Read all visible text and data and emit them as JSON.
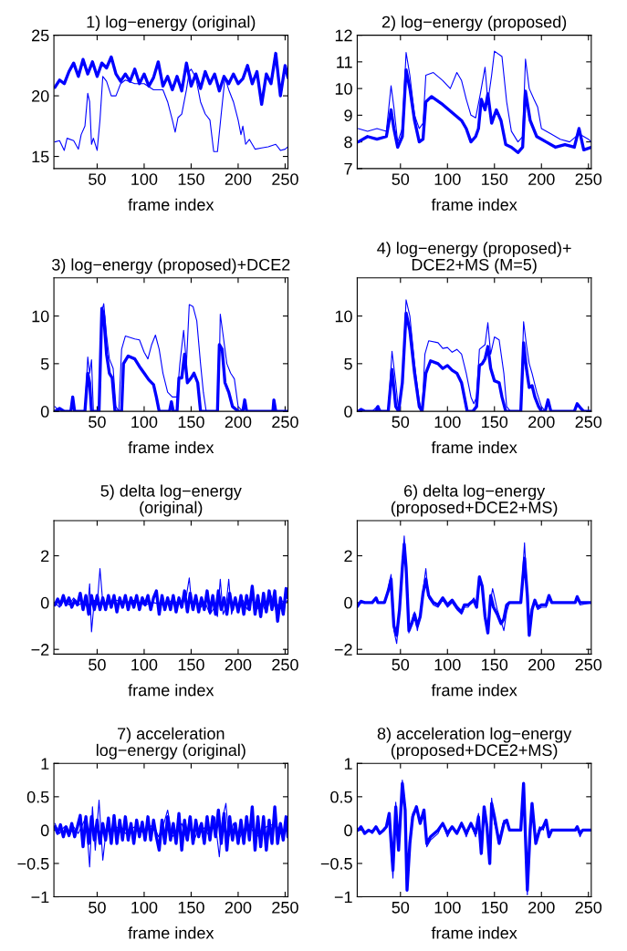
{
  "chart_data": [
    {
      "type": "line",
      "title": "1) log−energy (original)",
      "xlabel": "frame index",
      "xlim": [
        4,
        253
      ],
      "xticks": [
        50,
        100,
        150,
        200,
        250
      ],
      "ylim": [
        14,
        25
      ],
      "yticks": [
        15,
        20,
        25
      ],
      "grid": false,
      "line_style": "solid",
      "series": [
        {
          "color": "#0000ff",
          "x": [
            5,
            10,
            15,
            20,
            25,
            30,
            35,
            40,
            45,
            50,
            55,
            60,
            65,
            70,
            75,
            80,
            85,
            90,
            95,
            100,
            105,
            110,
            115,
            120,
            125,
            130,
            135,
            140,
            145,
            150,
            155,
            160,
            165,
            170,
            175,
            180,
            185,
            190,
            195,
            200,
            205,
            210,
            215,
            220,
            225,
            230,
            235,
            240,
            245,
            250,
            253
          ],
          "values": [
            20.7,
            21.3,
            21.0,
            22.0,
            22.7,
            21.6,
            23.0,
            21.8,
            22.8,
            21.6,
            22.7,
            22.3,
            23.2,
            21.8,
            21.2,
            21.8,
            21.2,
            22.2,
            21.0,
            21.8,
            20.8,
            21.5,
            22.8,
            20.8,
            21.6,
            20.5,
            21.6,
            20.4,
            22.7,
            20.8,
            21.8,
            20.6,
            22.0,
            21.0,
            21.8,
            20.4,
            21.6,
            21.0,
            21.8,
            21.0,
            21.4,
            22.5,
            21.0,
            22.0,
            19.3,
            21.8,
            21.0,
            23.5,
            20.0,
            22.5,
            21.5
          ]
        },
        {
          "color": "#0000ff",
          "x": [
            5,
            10,
            15,
            18,
            25,
            30,
            33,
            37,
            40,
            42,
            44,
            46,
            50,
            53,
            56,
            60,
            65,
            70,
            75,
            80,
            90,
            100,
            110,
            120,
            125,
            130,
            133,
            136,
            140,
            145,
            148,
            150,
            155,
            160,
            165,
            170,
            174,
            178,
            182,
            186,
            190,
            195,
            200,
            203,
            205,
            208,
            212,
            218,
            225,
            232,
            240,
            245,
            250,
            253
          ],
          "values": [
            16.2,
            16.3,
            15.5,
            16.5,
            16.3,
            15.6,
            16.8,
            17.5,
            20.2,
            19.5,
            16.0,
            16.5,
            15.5,
            18.0,
            21.6,
            21.2,
            20.0,
            20.0,
            21.0,
            21.3,
            21.0,
            21.0,
            20.5,
            20.5,
            19.5,
            18.0,
            17.0,
            18.2,
            18.5,
            20.5,
            22.0,
            22.2,
            21.5,
            19.5,
            18.5,
            18.0,
            15.4,
            15.4,
            18.5,
            21.5,
            20.5,
            19.5,
            18.0,
            16.8,
            17.5,
            16.0,
            16.4,
            15.6,
            15.7,
            15.8,
            16.0,
            15.5,
            15.6,
            15.8
          ]
        }
      ]
    },
    {
      "type": "line",
      "title": "2) log−energy (proposed)",
      "xlabel": "frame index",
      "xlim": [
        4,
        253
      ],
      "xticks": [
        50,
        100,
        150,
        200,
        250
      ],
      "ylim": [
        7,
        12
      ],
      "yticks": [
        7,
        8,
        9,
        10,
        11,
        12
      ],
      "grid": false,
      "line_style": "solid",
      "series": [
        {
          "color": "#0000ff",
          "x": [
            5,
            15,
            25,
            35,
            40,
            43,
            47,
            52,
            56,
            60,
            65,
            70,
            74,
            77,
            83,
            95,
            105,
            115,
            120,
            125,
            130,
            133,
            136,
            140,
            143,
            147,
            152,
            157,
            162,
            168,
            175,
            180,
            183,
            188,
            195,
            205,
            215,
            225,
            235,
            240,
            245,
            253
          ],
          "values": [
            8.0,
            8.2,
            8.1,
            8.2,
            9.2,
            8.5,
            7.8,
            8.2,
            10.7,
            10.0,
            8.8,
            8.0,
            8.1,
            9.5,
            9.7,
            9.4,
            9.1,
            8.8,
            8.5,
            8.0,
            8.2,
            8.5,
            9.6,
            9.2,
            9.8,
            8.7,
            9.2,
            8.8,
            7.9,
            7.8,
            7.6,
            7.8,
            9.9,
            8.8,
            8.2,
            8.0,
            7.8,
            7.9,
            7.8,
            8.5,
            7.7,
            7.8
          ]
        },
        {
          "color": "#0000ff",
          "x": [
            5,
            15,
            25,
            35,
            40,
            43,
            47,
            52,
            56,
            60,
            65,
            70,
            74,
            77,
            85,
            95,
            103,
            110,
            115,
            120,
            125,
            130,
            135,
            140,
            143,
            147,
            150,
            158,
            163,
            168,
            175,
            180,
            183,
            187,
            192,
            196,
            200,
            210,
            220,
            230,
            240,
            250,
            253
          ],
          "values": [
            8.5,
            8.4,
            8.5,
            8.4,
            10.1,
            9.3,
            8.0,
            8.5,
            11.35,
            10.5,
            9.0,
            8.5,
            8.7,
            10.5,
            10.6,
            10.3,
            10.0,
            10.6,
            10.3,
            9.6,
            9.0,
            8.9,
            9.8,
            10.8,
            9.5,
            10.5,
            11.4,
            11.2,
            9.5,
            8.4,
            8.0,
            8.2,
            11.1,
            10.0,
            9.6,
            9.3,
            8.5,
            8.3,
            8.1,
            8.0,
            8.3,
            8.1,
            8.0
          ]
        }
      ]
    },
    {
      "type": "line",
      "title": "3) log−energy (proposed)+DCE2",
      "xlabel": "frame index",
      "xlim": [
        4,
        253
      ],
      "xticks": [
        50,
        100,
        150,
        200,
        250
      ],
      "ylim": [
        0,
        14
      ],
      "yticks": [
        0,
        5,
        10
      ],
      "grid": false,
      "line_style": "solid",
      "series": [
        {
          "color": "#0000ff",
          "x": [
            5,
            10,
            15,
            22,
            24,
            26,
            37,
            40,
            42,
            44,
            52,
            55,
            57,
            60,
            63,
            66,
            69,
            76,
            78,
            83,
            90,
            95,
            100,
            105,
            110,
            113,
            116,
            127,
            129,
            131,
            135,
            137,
            140,
            143,
            146,
            150,
            153,
            157,
            160,
            178,
            180,
            183,
            186,
            190,
            194,
            200,
            205,
            207,
            209,
            237,
            238,
            240,
            253
          ],
          "values": [
            0,
            0.3,
            0,
            0,
            1.5,
            0,
            0,
            4,
            3,
            0,
            0,
            10.8,
            10,
            6,
            4,
            3.5,
            0,
            0,
            5,
            5.8,
            5.5,
            4.7,
            4,
            3.3,
            2.8,
            1.5,
            0,
            0,
            1,
            0,
            0,
            3.5,
            3.5,
            6,
            3,
            3.5,
            4,
            3,
            0,
            0,
            7,
            6.5,
            3,
            2,
            0.5,
            0,
            0,
            1.2,
            0,
            0,
            1.2,
            0,
            0
          ]
        },
        {
          "color": "#0000ff",
          "x": [
            5,
            10,
            22,
            24,
            26,
            37,
            40,
            42,
            44,
            46,
            52,
            55,
            57,
            60,
            63,
            67,
            70,
            73,
            76,
            80,
            90,
            95,
            100,
            104,
            108,
            112,
            116,
            120,
            125,
            130,
            135,
            138,
            142,
            145,
            148,
            152,
            156,
            160,
            163,
            166,
            178,
            180,
            181,
            184,
            188,
            192,
            196,
            200,
            205,
            207,
            209,
            237,
            238,
            240,
            253
          ],
          "values": [
            0.5,
            0,
            0,
            1.5,
            0,
            0,
            5.7,
            4,
            5.4,
            0,
            0,
            10.5,
            11.3,
            8,
            5.5,
            4.5,
            0.5,
            0,
            6.5,
            7.9,
            7.6,
            7.5,
            6.2,
            5.5,
            7,
            8,
            6.5,
            4,
            2,
            1.5,
            1.5,
            5,
            8.5,
            5,
            11.2,
            11,
            9.5,
            5,
            2,
            0,
            0,
            5,
            10.2,
            8,
            5,
            4,
            3.4,
            0.5,
            0,
            1.2,
            0,
            0,
            1.2,
            0,
            0
          ]
        }
      ]
    },
    {
      "type": "line",
      "title": "4) log−energy (proposed)+\nDCE2+MS (M=5)",
      "xlabel": "frame index",
      "xlim": [
        4,
        253
      ],
      "xticks": [
        50,
        100,
        150,
        200,
        250
      ],
      "ylim": [
        0,
        14
      ],
      "yticks": [
        0,
        5,
        10
      ],
      "grid": false,
      "line_style": "solid",
      "series": [
        {
          "color": "#0000ff",
          "x": [
            5,
            8,
            12,
            24,
            26,
            28,
            37,
            41,
            45,
            48,
            52,
            56,
            60,
            65,
            70,
            73,
            77,
            82,
            90,
            95,
            100,
            105,
            110,
            115,
            118,
            121,
            127,
            131,
            134,
            137,
            140,
            143,
            146,
            150,
            155,
            158,
            162,
            178,
            181,
            184,
            187,
            190,
            193,
            197,
            200,
            204,
            207,
            210,
            235,
            238,
            242,
            245,
            253
          ],
          "values": [
            0,
            0.2,
            0,
            0,
            0.5,
            0,
            0,
            4.4,
            0.5,
            0,
            3,
            10.3,
            8.5,
            4,
            0.5,
            0,
            4,
            5.3,
            5,
            4.5,
            4.8,
            4.3,
            4,
            3,
            1.5,
            0,
            0,
            0.5,
            4.8,
            5,
            5.5,
            6.8,
            4.5,
            3.2,
            3,
            1.5,
            0,
            0,
            7.2,
            4.5,
            2.5,
            2.7,
            1.5,
            0.5,
            0,
            0,
            1.2,
            0,
            0,
            0.8,
            0.3,
            0,
            0
          ]
        },
        {
          "color": "#0000ff",
          "x": [
            5,
            20,
            25,
            30,
            37,
            41,
            45,
            48,
            52,
            56,
            60,
            65,
            70,
            73,
            76,
            80,
            90,
            95,
            100,
            105,
            110,
            115,
            120,
            125,
            128,
            131,
            134,
            140,
            143,
            146,
            150,
            155,
            160,
            163,
            167,
            178,
            181,
            184,
            187,
            190,
            195,
            200,
            204,
            207,
            210,
            235,
            238,
            242,
            245,
            253
          ],
          "values": [
            0,
            0,
            0.5,
            0,
            0,
            6.3,
            3,
            0,
            3,
            11.7,
            10,
            5,
            1,
            0,
            6,
            7.4,
            7.2,
            6.6,
            6.7,
            6.2,
            6.5,
            6,
            4,
            1.5,
            0.8,
            1.5,
            6.5,
            7,
            9.3,
            6,
            7.8,
            7.5,
            4,
            0.5,
            0,
            0,
            9.4,
            7,
            5,
            4,
            2,
            0.5,
            0,
            1.2,
            0,
            0,
            0.8,
            0.3,
            0,
            0
          ]
        }
      ]
    },
    {
      "type": "line",
      "title": "5) delta log−energy\n(original)",
      "xlabel": "frame index",
      "xlim": [
        4,
        253
      ],
      "xticks": [
        50,
        100,
        150,
        200,
        250
      ],
      "ylim": [
        -2.2,
        3.5
      ],
      "yticks": [
        {
          "value": -2,
          "label": "−2"
        },
        0,
        2
      ],
      "grid": false,
      "line_style": "solid",
      "series": [
        {
          "color": "#0000ff",
          "x": [
            5,
            8,
            11,
            14,
            17,
            20,
            23,
            26,
            29,
            32,
            35,
            38,
            41,
            44,
            47,
            50,
            53,
            56,
            59,
            62,
            65,
            68,
            71,
            74,
            77,
            80,
            83,
            86,
            89,
            92,
            95,
            98,
            101,
            104,
            107,
            110,
            113,
            116,
            119,
            122,
            125,
            128,
            131,
            134,
            137,
            140,
            143,
            146,
            149,
            152,
            155,
            158,
            161,
            164,
            167,
            170,
            173,
            176,
            179,
            182,
            185,
            188,
            191,
            194,
            197,
            200,
            203,
            206,
            209,
            212,
            215,
            218,
            221,
            224,
            227,
            230,
            233,
            236,
            239,
            242,
            245,
            248,
            251,
            253
          ],
          "values": [
            -0.1,
            0.15,
            -0.1,
            0.3,
            -0.1,
            0.2,
            -0.2,
            0.1,
            -0.1,
            0.4,
            -0.3,
            0.3,
            -0.5,
            0.3,
            -0.3,
            0.3,
            -0.3,
            0.2,
            -0.3,
            0.3,
            -0.2,
            0.3,
            -0.4,
            0.2,
            -0.2,
            0.3,
            -0.3,
            0.2,
            -0.2,
            0.3,
            -0.3,
            0.2,
            -0.1,
            0.3,
            -0.3,
            0.2,
            0.5,
            -0.5,
            0.3,
            -0.3,
            0.2,
            -0.3,
            0.3,
            -0.4,
            0.2,
            -0.2,
            0.5,
            -0.4,
            0.4,
            -0.3,
            0.3,
            -0.4,
            0.2,
            -0.3,
            0.5,
            -0.4,
            0.3,
            -0.5,
            0.5,
            -0.3,
            0.2,
            -0.5,
            0.4,
            -0.3,
            0.2,
            -0.4,
            0.3,
            -0.5,
            0.3,
            -0.3,
            0.7,
            -0.5,
            0.3,
            -0.6,
            0.4,
            -0.4,
            0.5,
            -0.3,
            0.5,
            -0.8,
            0.2,
            -0.5,
            0.6,
            0.2
          ]
        },
        {
          "color": "#0000ff",
          "x": [
            5,
            10,
            15,
            20,
            25,
            30,
            35,
            40,
            42,
            44,
            47,
            50,
            53,
            56,
            60,
            70,
            80,
            90,
            100,
            110,
            120,
            130,
            140,
            145,
            148,
            151,
            155,
            160,
            165,
            170,
            175,
            178,
            181,
            184,
            187,
            190,
            193,
            197,
            200,
            205,
            210,
            215,
            220,
            225,
            230,
            235,
            240,
            245,
            250,
            253
          ],
          "values": [
            0,
            -0.2,
            0.1,
            -0.1,
            0.2,
            -0.1,
            0,
            -0.2,
            0.8,
            -1.25,
            0.1,
            -0.1,
            1.45,
            0,
            -0.1,
            0.1,
            0,
            0.1,
            -0.1,
            0,
            -0.1,
            0.1,
            -0.1,
            0.3,
            1.05,
            -0.3,
            0.1,
            -0.2,
            0,
            -0.5,
            -0.2,
            -0.6,
            1.0,
            -0.5,
            -0.2,
            1.0,
            -0.5,
            0.1,
            -0.4,
            0.1,
            -0.3,
            0.2,
            -0.3,
            0,
            -0.4,
            0.3,
            -0.3,
            0.1,
            0,
            0.1
          ]
        }
      ]
    },
    {
      "type": "line",
      "title": "6) delta log−energy\n(proposed+DCE2+MS)",
      "xlabel": "frame index",
      "xlim": [
        4,
        253
      ],
      "xticks": [
        50,
        100,
        150,
        200,
        250
      ],
      "ylim": [
        -2.2,
        3.5
      ],
      "yticks": [
        {
          "value": -2,
          "label": "−2"
        },
        0,
        2
      ],
      "grid": false,
      "line_style": "solid",
      "series": [
        {
          "color": "#0000ff",
          "x": [
            5,
            8,
            12,
            20,
            24,
            26,
            33,
            37,
            40,
            43,
            46,
            49,
            52,
            54,
            56,
            59,
            62,
            65,
            68,
            71,
            74,
            77,
            80,
            85,
            90,
            95,
            100,
            105,
            110,
            115,
            118,
            122,
            125,
            128,
            131,
            134,
            137,
            140,
            143,
            146,
            149,
            153,
            157,
            160,
            163,
            166,
            178,
            182,
            185,
            187,
            190,
            193,
            196,
            200,
            205,
            208,
            211,
            236,
            238,
            241,
            253
          ],
          "values": [
            -0.1,
            0.05,
            0,
            0,
            0.2,
            0,
            0,
            0.5,
            1.0,
            -1.0,
            -1.4,
            -0.3,
            1.5,
            2.5,
            1.5,
            -1.2,
            -0.9,
            -0.5,
            -1.0,
            -0.6,
            0.4,
            1.0,
            0.3,
            0,
            -0.1,
            0.2,
            -0.1,
            0.1,
            -0.2,
            -0.4,
            -0.1,
            -0.1,
            0,
            0.1,
            -0.2,
            1.1,
            0.7,
            -0.6,
            -1.3,
            0.3,
            -0.2,
            -0.5,
            -0.9,
            -0.7,
            -0.1,
            0,
            0,
            1.9,
            0.3,
            -1.4,
            -0.3,
            0.1,
            -0.2,
            -0.1,
            -0.1,
            0.3,
            0,
            0,
            0.25,
            0,
            0
          ]
        },
        {
          "color": "#0000ff",
          "x": [
            5,
            8,
            12,
            20,
            24,
            26,
            33,
            37,
            40,
            43,
            46,
            49,
            52,
            54,
            56,
            59,
            62,
            65,
            68,
            71,
            74,
            77,
            80,
            85,
            90,
            95,
            100,
            105,
            110,
            115,
            118,
            122,
            125,
            128,
            131,
            134,
            137,
            140,
            143,
            146,
            148,
            153,
            157,
            160,
            163,
            166,
            178,
            182,
            185,
            187,
            190,
            193,
            196,
            200,
            205,
            208,
            211,
            236,
            238,
            241,
            253
          ],
          "values": [
            -0.2,
            0.1,
            0,
            0,
            0.2,
            0,
            0,
            0.6,
            1.2,
            -1.2,
            -1.75,
            -0.3,
            1.6,
            2.85,
            1.4,
            -1.3,
            -0.8,
            -0.4,
            -1.2,
            -0.5,
            0.5,
            1.45,
            0.2,
            -0.1,
            -0.2,
            0.1,
            -0.2,
            0,
            -0.3,
            -0.5,
            -0.2,
            -0.2,
            0,
            0.2,
            -0.1,
            1.1,
            0.6,
            -0.7,
            -1.2,
            0.1,
            0.6,
            -0.3,
            -0.8,
            -1.2,
            -0.4,
            0,
            0,
            2.55,
            0.2,
            -1.4,
            -0.4,
            0.1,
            -0.3,
            -0.2,
            -0.2,
            0.3,
            0,
            0,
            0.2,
            -0.1,
            0
          ]
        }
      ]
    },
    {
      "type": "line",
      "title": "7) acceleration\nlog−energy (original)",
      "xlabel": "frame index",
      "xlim": [
        4,
        253
      ],
      "xticks": [
        50,
        100,
        150,
        200,
        250
      ],
      "ylim": [
        -1,
        1
      ],
      "yticks": [
        {
          "value": -1,
          "label": "−1"
        },
        {
          "value": -0.5,
          "label": "−0.5"
        },
        0,
        0.5,
        1
      ],
      "grid": false,
      "line_style": "solid",
      "series": [
        {
          "color": "#0000ff",
          "x": [
            5,
            8,
            11,
            14,
            17,
            20,
            23,
            26,
            29,
            32,
            35,
            38,
            41,
            44,
            47,
            50,
            53,
            56,
            59,
            62,
            65,
            68,
            71,
            74,
            77,
            80,
            83,
            86,
            89,
            92,
            95,
            98,
            101,
            104,
            107,
            110,
            113,
            116,
            119,
            122,
            125,
            128,
            131,
            134,
            137,
            140,
            143,
            146,
            149,
            152,
            155,
            158,
            161,
            164,
            167,
            170,
            173,
            176,
            179,
            182,
            185,
            188,
            191,
            194,
            197,
            200,
            203,
            206,
            209,
            212,
            215,
            218,
            221,
            224,
            227,
            230,
            233,
            236,
            239,
            242,
            245,
            248,
            251,
            253
          ],
          "values": [
            0.05,
            -0.05,
            0.08,
            -0.1,
            0.05,
            -0.08,
            0.1,
            -0.1,
            0.05,
            0.22,
            -0.25,
            0.2,
            -0.2,
            0.2,
            -0.15,
            0.15,
            -0.2,
            0.1,
            -0.15,
            0.18,
            -0.2,
            0.22,
            -0.2,
            0.15,
            -0.15,
            0.2,
            -0.15,
            0.1,
            -0.2,
            0.15,
            -0.1,
            0.12,
            -0.15,
            0.2,
            -0.15,
            0.15,
            -0.1,
            -0.3,
            0.15,
            -0.2,
            0.2,
            -0.15,
            0.1,
            -0.2,
            0.25,
            -0.3,
            0.15,
            -0.15,
            0.2,
            -0.2,
            0.15,
            -0.1,
            0.1,
            -0.2,
            0.2,
            -0.15,
            0.2,
            -0.1,
            0.3,
            -0.2,
            0.25,
            -0.3,
            0.2,
            -0.15,
            0.1,
            -0.2,
            0.15,
            -0.2,
            0.2,
            -0.15,
            0.35,
            -0.3,
            0.2,
            -0.25,
            0.2,
            -0.3,
            0.15,
            -0.2,
            0.35,
            -0.2,
            0.1,
            -0.15,
            0.2,
            -0.1
          ]
        },
        {
          "color": "#0000ff",
          "x": [
            5,
            10,
            15,
            20,
            25,
            30,
            35,
            38,
            42,
            45,
            48,
            52,
            56,
            60,
            65,
            70,
            80,
            90,
            100,
            110,
            115,
            120,
            125,
            130,
            140,
            145,
            148,
            152,
            160,
            170,
            175,
            180,
            183,
            187,
            190,
            195,
            200,
            210,
            220,
            230,
            240,
            245,
            253
          ],
          "values": [
            0.1,
            -0.05,
            0.05,
            -0.1,
            0.05,
            -0.05,
            0.1,
            0.2,
            -0.55,
            0.35,
            -0.3,
            0.45,
            -0.45,
            0.05,
            -0.05,
            0.05,
            -0.05,
            0.05,
            -0.05,
            0.1,
            -0.1,
            0.05,
            0.3,
            -0.1,
            0.1,
            -0.15,
            0.2,
            -0.2,
            0.1,
            -0.1,
            0.2,
            -0.4,
            0.15,
            0.4,
            -0.1,
            0.1,
            -0.15,
            0.1,
            -0.1,
            0.05,
            0.1,
            -0.05,
            0
          ]
        }
      ]
    },
    {
      "type": "line",
      "title": "8) acceleration log−energy\n(proposed+DCE2+MS)",
      "xlabel": "frame index",
      "xlim": [
        4,
        253
      ],
      "xticks": [
        50,
        100,
        150,
        200,
        250
      ],
      "ylim": [
        -1,
        1
      ],
      "yticks": [
        {
          "value": -1,
          "label": "−1"
        },
        {
          "value": -0.5,
          "label": "−0.5"
        },
        0,
        0.5,
        1
      ],
      "grid": false,
      "line_style": "solid",
      "series": [
        {
          "color": "#0000ff",
          "x": [
            5,
            8,
            12,
            16,
            20,
            24,
            28,
            32,
            35,
            38,
            42,
            45,
            48,
            52,
            55,
            57,
            60,
            63,
            67,
            71,
            75,
            78,
            82,
            90,
            95,
            100,
            105,
            110,
            115,
            120,
            125,
            130,
            133,
            136,
            139,
            142,
            145,
            147,
            150,
            155,
            160,
            163,
            166,
            178,
            181,
            185,
            188,
            190,
            194,
            198,
            202,
            205,
            208,
            211,
            214,
            236,
            238,
            241,
            244,
            253
          ],
          "values": [
            0,
            0.05,
            -0.05,
            0,
            -0.03,
            0.05,
            -0.05,
            0,
            0.05,
            0.25,
            -0.6,
            0.35,
            -0.3,
            0.7,
            0.3,
            -0.9,
            -0.2,
            0.2,
            0.35,
            0.1,
            0.3,
            -0.2,
            -0.1,
            0,
            0.1,
            -0.05,
            0.05,
            -0.05,
            0.1,
            -0.05,
            0.1,
            -0.05,
            0.2,
            -0.35,
            0.35,
            0.05,
            -0.5,
            0.4,
            0.2,
            -0.2,
            0.1,
            0.15,
            0,
            0,
            0.7,
            -0.9,
            0,
            0.4,
            -0.2,
            0,
            0.05,
            0.15,
            -0.1,
            0,
            0,
            0,
            0.05,
            -0.05,
            0,
            0
          ]
        },
        {
          "color": "#0000ff",
          "x": [
            5,
            8,
            12,
            16,
            20,
            24,
            28,
            32,
            35,
            38,
            42,
            45,
            48,
            52,
            55,
            57,
            60,
            63,
            67,
            71,
            75,
            78,
            82,
            90,
            95,
            100,
            105,
            110,
            115,
            120,
            125,
            130,
            133,
            136,
            139,
            142,
            145,
            147,
            150,
            155,
            160,
            163,
            166,
            178,
            181,
            185,
            188,
            190,
            194,
            198,
            202,
            205,
            208,
            211,
            214,
            236,
            238,
            241,
            244,
            253
          ],
          "values": [
            0,
            0.05,
            -0.05,
            0,
            -0.05,
            0.05,
            -0.05,
            0,
            0.05,
            0.2,
            -0.72,
            0.42,
            -0.25,
            0.75,
            0.25,
            -0.85,
            -0.15,
            0.25,
            0.35,
            0.1,
            0.25,
            -0.25,
            -0.15,
            -0.05,
            0.1,
            -0.1,
            0.05,
            -0.05,
            0.12,
            -0.1,
            0.1,
            -0.1,
            0.25,
            -0.3,
            0.3,
            0.1,
            -0.45,
            0.48,
            0.1,
            -0.15,
            0.15,
            0.15,
            0,
            0,
            0.6,
            -0.97,
            0.05,
            0.35,
            -0.15,
            0.05,
            0,
            0.15,
            -0.1,
            0,
            0,
            0,
            0.05,
            -0.1,
            0,
            0
          ]
        }
      ]
    }
  ]
}
